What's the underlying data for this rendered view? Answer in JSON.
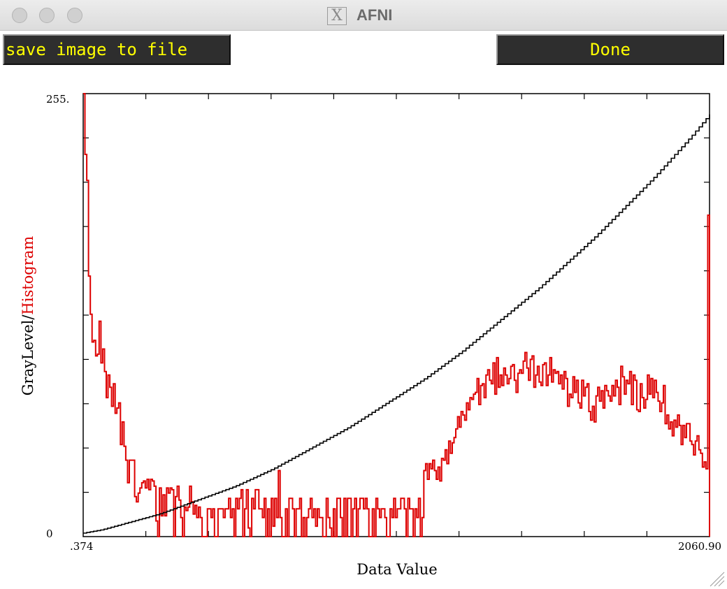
{
  "window": {
    "title": "AFNI",
    "title_icon": "x11-icon"
  },
  "toolbar": {
    "save_label": "save image to file",
    "done_label": "Done"
  },
  "chart_data": {
    "type": "line",
    "xlabel": "Data Value",
    "ylabel_gray": "GrayLevel/",
    "ylabel_hist": "Histogram",
    "y_top_tick": "255.",
    "y_bottom_tick": "0",
    "x_min_tick": ".374",
    "x_max_tick": "2060.90",
    "xlim": [
      0.374,
      2060.9
    ],
    "ylim": [
      0,
      255
    ],
    "colors": {
      "graylevel": "#000000",
      "histogram": "#dd0000"
    },
    "series": [
      {
        "name": "GrayLevel",
        "values": [
          2,
          4,
          7,
          10,
          13,
          17,
          21,
          25,
          29,
          34,
          39,
          45,
          51,
          57,
          63,
          70,
          77,
          84,
          91,
          99,
          107,
          116,
          125,
          134,
          143,
          153,
          163,
          173,
          184,
          195,
          206,
          218,
          230,
          243
        ]
      },
      {
        "name": "Histogram",
        "values": [
          255,
          220,
          205,
          150,
          128,
          112,
          113,
          104,
          105,
          124,
          100,
          108,
          95,
          80,
          93,
          86,
          75,
          88,
          71,
          74,
          77,
          53,
          66,
          52,
          44,
          31,
          44,
          44,
          44,
          23,
          20,
          25,
          28,
          31,
          32,
          28,
          33,
          27,
          33,
          32,
          29,
          9,
          0,
          28,
          12,
          24,
          12,
          28,
          25,
          28,
          27,
          0,
          23,
          29,
          21,
          11,
          0,
          17,
          15,
          17,
          29,
          20,
          13,
          18,
          11,
          17,
          11,
          0,
          0,
          0,
          16,
          16,
          11,
          16,
          0,
          0,
          16,
          16,
          16,
          11,
          16,
          16,
          22,
          11,
          16,
          0,
          22,
          16,
          22,
          27,
          0,
          16,
          27,
          5,
          0,
          22,
          16,
          27,
          27,
          16,
          16,
          11,
          22,
          0,
          16,
          0,
          22,
          6,
          22,
          11,
          38,
          11,
          0,
          0,
          16,
          0,
          22,
          22,
          16,
          0,
          16,
          16,
          22,
          0,
          11,
          0,
          11,
          16,
          22,
          11,
          16,
          6,
          16,
          11,
          11,
          0,
          0,
          22,
          11,
          5,
          0,
          16,
          0,
          22,
          22,
          11,
          0,
          22,
          0,
          22,
          22,
          0,
          16,
          22,
          0,
          16,
          22,
          22,
          16,
          22,
          16,
          0,
          0,
          16,
          0,
          22,
          16,
          11,
          16,
          16,
          11,
          0,
          0,
          16,
          11,
          22,
          11,
          16,
          16,
          22,
          22,
          16,
          0,
          22,
          16,
          16,
          0,
          16,
          11,
          22,
          0,
          11,
          38,
          42,
          33,
          42,
          39,
          44,
          38,
          33,
          40,
          32,
          45,
          44,
          50,
          42,
          55,
          48,
          54,
          57,
          62,
          69,
          63,
          72,
          70,
          67,
          77,
          73,
          80,
          79,
          82,
          83,
          91,
          76,
          87,
          88,
          80,
          93,
          96,
          90,
          88,
          100,
          82,
          103,
          86,
          93,
          87,
          97,
          93,
          88,
          91,
          98,
          99,
          90,
          83,
          94,
          96,
          94,
          101,
          106,
          97,
          90,
          102,
          104,
          86,
          93,
          98,
          89,
          87,
          99,
          100,
          87,
          93,
          103,
          89,
          96,
          94,
          95,
          88,
          93,
          85,
          95,
          91,
          75,
          82,
          80,
          92,
          83,
          90,
          77,
          74,
          90,
          81,
          86,
          88,
          72,
          67,
          75,
          66,
          81,
          86,
          78,
          84,
          74,
          87,
          84,
          81,
          78,
          87,
          81,
          90,
          86,
          76,
          98,
          92,
          82,
          90,
          88,
          95,
          76,
          93,
          90,
          73,
          72,
          88,
          80,
          74,
          79,
          93,
          82,
          91,
          80,
          90,
          83,
          78,
          72,
          77,
          87,
          65,
          70,
          62,
          66,
          58,
          67,
          63,
          70,
          64,
          53,
          64,
          57,
          65,
          65,
          55,
          53,
          47,
          55,
          58,
          50,
          48,
          40,
          43,
          39,
          185
        ]
      }
    ]
  }
}
